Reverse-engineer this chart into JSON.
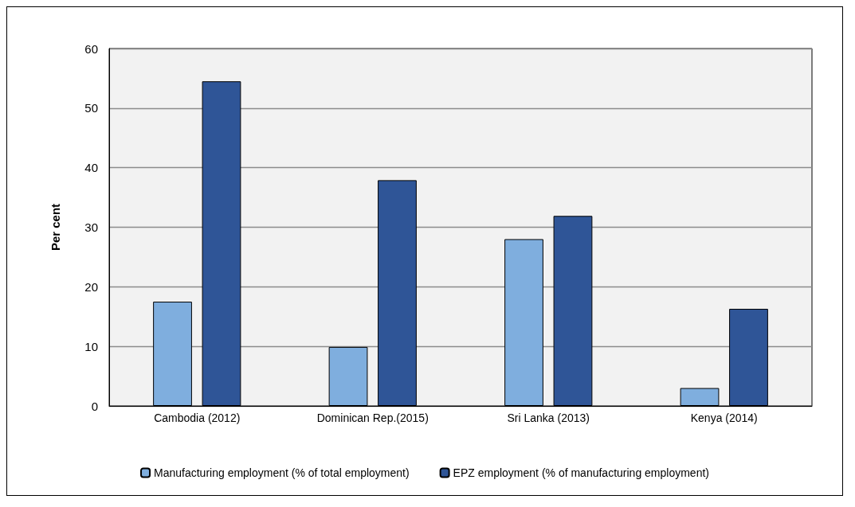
{
  "chart_data": {
    "type": "bar",
    "ylabel": "Per cent",
    "categories": [
      "Cambodia (2012)",
      "Dominican Rep.(2015)",
      "Sri Lanka (2013)",
      "Kenya (2014)"
    ],
    "series": [
      {
        "name": "Manufacturing employment (% of total employment)",
        "color": "#7faede",
        "values": [
          17.5,
          9.9,
          28.0,
          3.0
        ]
      },
      {
        "name": "EPZ employment (% of manufacturing employment)",
        "color": "#2f5597",
        "values": [
          54.5,
          37.9,
          31.9,
          16.3
        ]
      }
    ],
    "ylim": [
      0,
      60
    ],
    "yticks": [
      0,
      10,
      20,
      30,
      40,
      50,
      60
    ],
    "grid": "y",
    "legend": "bottom"
  }
}
